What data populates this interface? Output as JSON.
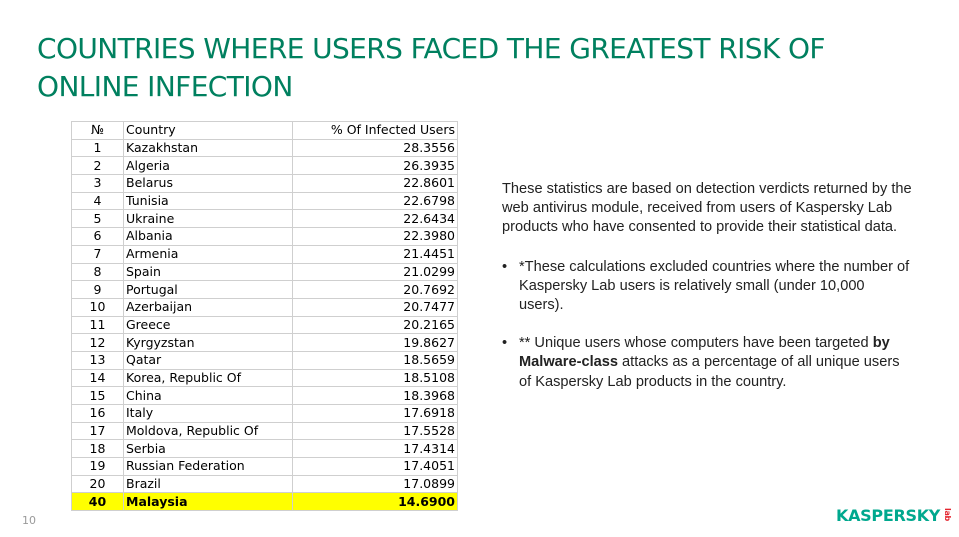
{
  "title": "COUNTRIES WHERE USERS FACED THE GREATEST RISK OF ONLINE INFECTION",
  "table": {
    "headers": {
      "num": "№",
      "country": "Country",
      "pct": "% Of Infected Users"
    },
    "rows": [
      {
        "num": "1",
        "country": "Kazakhstan",
        "pct": "28.3556"
      },
      {
        "num": "2",
        "country": "Algeria",
        "pct": "26.3935"
      },
      {
        "num": "3",
        "country": "Belarus",
        "pct": "22.8601"
      },
      {
        "num": "4",
        "country": "Tunisia",
        "pct": "22.6798"
      },
      {
        "num": "5",
        "country": "Ukraine",
        "pct": "22.6434"
      },
      {
        "num": "6",
        "country": "Albania",
        "pct": "22.3980"
      },
      {
        "num": "7",
        "country": "Armenia",
        "pct": "21.4451"
      },
      {
        "num": "8",
        "country": "Spain",
        "pct": "21.0299"
      },
      {
        "num": "9",
        "country": "Portugal",
        "pct": "20.7692"
      },
      {
        "num": "10",
        "country": "Azerbaijan",
        "pct": "20.7477"
      },
      {
        "num": "11",
        "country": "Greece",
        "pct": "20.2165"
      },
      {
        "num": "12",
        "country": "Kyrgyzstan",
        "pct": "19.8627"
      },
      {
        "num": "13",
        "country": "Qatar",
        "pct": "18.5659"
      },
      {
        "num": "14",
        "country": "Korea, Republic Of",
        "pct": "18.5108"
      },
      {
        "num": "15",
        "country": "China",
        "pct": "18.3968"
      },
      {
        "num": "16",
        "country": "Italy",
        "pct": "17.6918"
      },
      {
        "num": "17",
        "country": "Moldova, Republic Of",
        "pct": "17.5528"
      },
      {
        "num": "18",
        "country": "Serbia",
        "pct": "17.4314"
      },
      {
        "num": "19",
        "country": "Russian Federation",
        "pct": "17.4051"
      },
      {
        "num": "20",
        "country": "Brazil",
        "pct": "17.0899"
      },
      {
        "num": "40",
        "country": "Malaysia",
        "pct": "14.6900",
        "highlight": true
      }
    ],
    "highlight_color": "#ffff00"
  },
  "notes": {
    "intro": "These statistics are based on detection verdicts returned by the web antivirus module, received from users of Kaspersky Lab products who have consented to provide their statistical data.",
    "bullets": [
      {
        "text": "*These calculations excluded countries where the number of Kaspersky Lab users is relatively small (under 10,000 users)."
      },
      {
        "before": "** Unique users whose computers have been targeted ",
        "bold": "by Malware-class",
        "after": " attacks as a percentage of all unique users of Kaspersky Lab products in the country."
      }
    ]
  },
  "page_number": "10",
  "logo": {
    "text": "KASPERSKY",
    "suffix": "lab"
  },
  "colors": {
    "title": "#00805f",
    "logo": "#00a88e",
    "logo_lab": "#e4252f"
  }
}
